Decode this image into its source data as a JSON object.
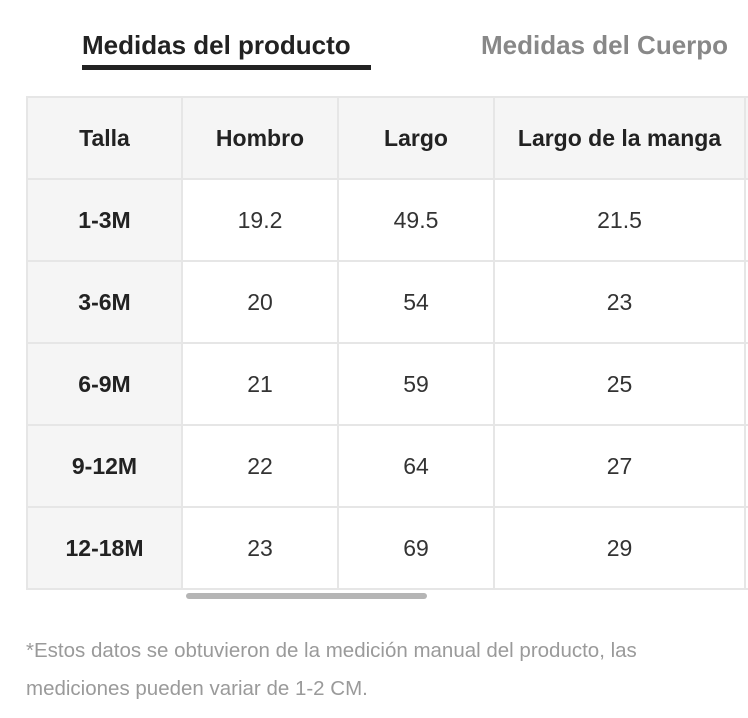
{
  "tabs": {
    "active_label": "Medidas del producto",
    "inactive_label": "Medidas del Cuerpo"
  },
  "table": {
    "headers": [
      "Talla",
      "Hombro",
      "Largo",
      "Largo de la manga"
    ],
    "rows": [
      [
        "1-3M",
        "19.2",
        "49.5",
        "21.5"
      ],
      [
        "3-6M",
        "20",
        "54",
        "23"
      ],
      [
        "6-9M",
        "21",
        "59",
        "25"
      ],
      [
        "9-12M",
        "22",
        "64",
        "27"
      ],
      [
        "12-18M",
        "23",
        "69",
        "29"
      ]
    ]
  },
  "footnote": {
    "line1": "*Estos datos se obtuvieron de la medición manual del producto, las",
    "line2": "mediciones pueden variar de 1-2 CM."
  },
  "colors": {
    "active_tab": "#222222",
    "inactive_tab": "#888888",
    "header_bg": "#f5f5f5",
    "border": "#e6e6e6",
    "footnote": "#9a9a9a"
  }
}
